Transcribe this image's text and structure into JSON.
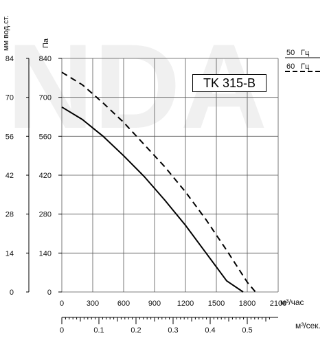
{
  "chart_data": {
    "type": "line",
    "watermark": "NDA",
    "model": "TK 315-B",
    "left_axis_unit": "мм вод.ст.",
    "pressure_unit": "Па",
    "mm_ticks": [
      "84",
      "70",
      "56",
      "42",
      "28",
      "14",
      "0"
    ],
    "pa_ticks": [
      "840",
      "700",
      "560",
      "420",
      "280",
      "140",
      "0"
    ],
    "x_ticks_m3h": [
      "0",
      "300",
      "600",
      "900",
      "1200",
      "1500",
      "1800",
      "2100"
    ],
    "x_label_m3h": "м³/час",
    "x_ticks_m3s": [
      "0",
      "0.1",
      "0.2",
      "0.3",
      "0.4",
      "0.5"
    ],
    "x_label_m3s": "м³/сек.",
    "xlim": [
      0,
      2100
    ],
    "ylim": [
      0,
      840
    ],
    "legend": [
      {
        "label": "50",
        "unit": "Гц",
        "style": "solid"
      },
      {
        "label": "60",
        "unit": "Гц",
        "style": "dashed"
      }
    ],
    "series": [
      {
        "name": "50 Гц",
        "style": "solid",
        "x": [
          0,
          200,
          400,
          600,
          800,
          1000,
          1200,
          1400,
          1600,
          1760
        ],
        "y": [
          665,
          620,
          560,
          490,
          415,
          330,
          240,
          140,
          40,
          0
        ]
      },
      {
        "name": "60 Гц",
        "style": "dashed",
        "x": [
          0,
          200,
          400,
          600,
          800,
          1000,
          1200,
          1400,
          1600,
          1800,
          1880
        ],
        "y": [
          790,
          745,
          680,
          610,
          530,
          450,
          360,
          260,
          150,
          35,
          0
        ]
      }
    ]
  }
}
